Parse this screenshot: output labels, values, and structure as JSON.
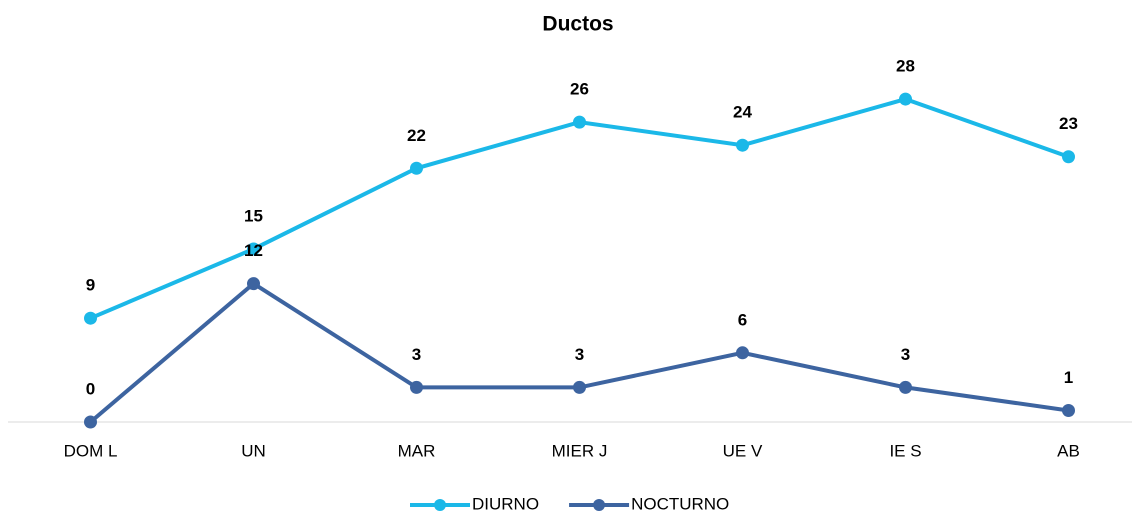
{
  "chart_data": {
    "type": "line",
    "title": "Ductos",
    "categories": [
      "DOM L",
      "UN",
      "MAR",
      "MIER J",
      "UE V",
      "IE S",
      "AB"
    ],
    "series": [
      {
        "name": "DIURNO",
        "color": "#1bb8e8",
        "values": [
          9,
          15,
          22,
          26,
          24,
          28,
          23
        ]
      },
      {
        "name": "NOCTURNO",
        "color": "#3d64a0",
        "values": [
          0,
          12,
          3,
          3,
          6,
          3,
          1
        ]
      }
    ],
    "ylim": [
      0,
      30
    ],
    "legend": "bottom"
  }
}
